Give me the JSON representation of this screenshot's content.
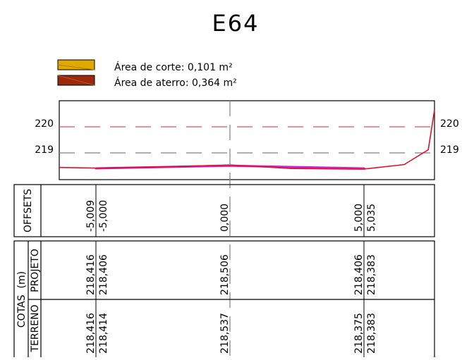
{
  "title": "E64",
  "legend": {
    "items": [
      {
        "label": "Área de corte: 0,101  m²",
        "color": "#e0a800"
      },
      {
        "label": "Área de aterro: 0,364  m²",
        "color": "#9b2a0a"
      }
    ]
  },
  "elevation_axis": {
    "labels": [
      "220",
      "219"
    ]
  },
  "offsets_table": {
    "row_label": "OFFSETS",
    "values": [
      "-5,009",
      "-5,000",
      "0,000",
      "5,000",
      "5,035"
    ]
  },
  "cotas_table": {
    "group_label": "COTAS  (m)",
    "projeto_label": "PROJETO",
    "terreno_label": "TERRENO",
    "projeto_values": [
      "218,416",
      "218,406",
      "218,506",
      "218,406",
      "218,383"
    ],
    "terreno_values": [
      "218,416",
      "218,414",
      "218,537",
      "218,375",
      "218,383"
    ]
  },
  "colors": {
    "terrain_line": "#e0102a",
    "design_line": "#d020c8",
    "grid_red": "#e05050",
    "grid_gray": "#808080",
    "fill_corte": "#e0a800",
    "fill_aterro": "#9b2a0a"
  },
  "chart_data": {
    "type": "line",
    "ylim": [
      218.15,
      220.65
    ],
    "series": [
      {
        "name": "TERRENO",
        "x": [
          -10.4,
          -5.009,
          -5.0,
          -2.2,
          0.0,
          2.3,
          5.0,
          5.035,
          6.5,
          7.4,
          8.3
        ],
        "y": [
          218.44,
          218.416,
          218.414,
          218.47,
          218.537,
          218.4,
          218.375,
          218.383,
          218.55,
          219.12,
          220.65
        ]
      },
      {
        "name": "PROJETO",
        "x": [
          -5.009,
          -5.0,
          0.0,
          5.0,
          5.035
        ],
        "y": [
          218.416,
          218.406,
          218.506,
          218.406,
          218.383
        ]
      }
    ]
  }
}
